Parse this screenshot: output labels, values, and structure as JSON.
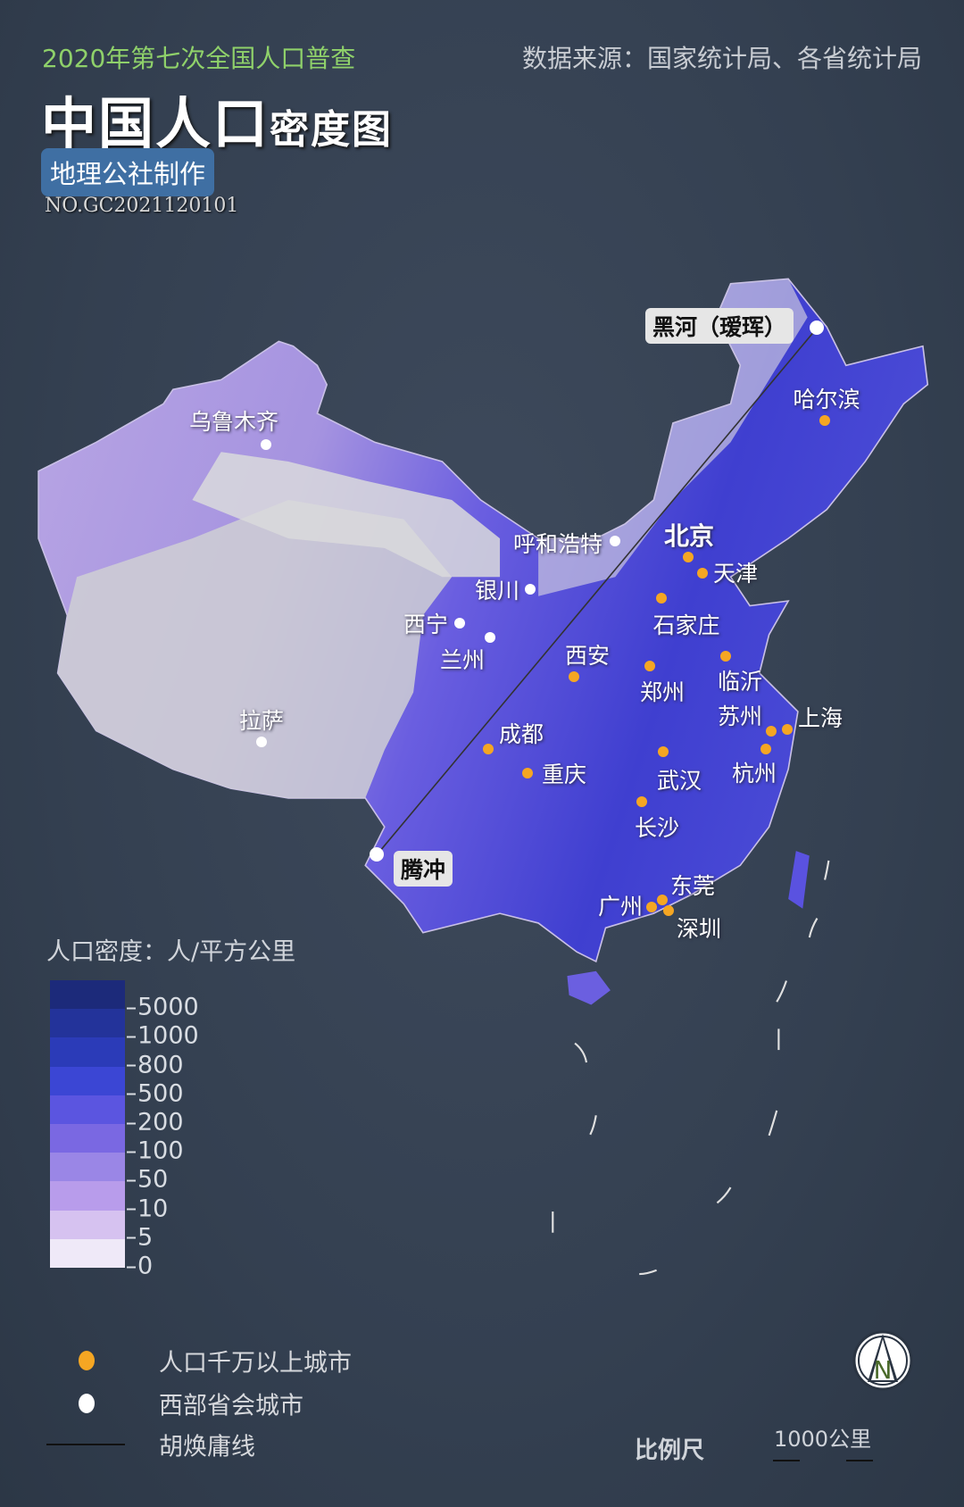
{
  "header": {
    "subtitle": "2020年第七次全国人口普查",
    "source": "数据来源：国家统计局、各省统计局",
    "title_large": "中国人口",
    "title_small": "密度图",
    "maker": "地理公社制作",
    "serial": "NO.GC2021120101"
  },
  "colors": {
    "megacity_dot": "#f5a623",
    "western_capital_dot": "#ffffff",
    "background": "#344051",
    "subtitle": "#8fd16a",
    "maker_badge": "#3f6fa3"
  },
  "cities": [
    {
      "name": "黑河（瑷珲）",
      "type": "western_capital",
      "style": "boxed"
    },
    {
      "name": "哈尔滨",
      "type": "megacity"
    },
    {
      "name": "乌鲁木齐",
      "type": "western_capital"
    },
    {
      "name": "呼和浩特",
      "type": "western_capital"
    },
    {
      "name": "北京",
      "type": "megacity",
      "style": "bold"
    },
    {
      "name": "天津",
      "type": "megacity"
    },
    {
      "name": "银川",
      "type": "western_capital"
    },
    {
      "name": "石家庄",
      "type": "megacity"
    },
    {
      "name": "西宁",
      "type": "western_capital"
    },
    {
      "name": "兰州",
      "type": "western_capital"
    },
    {
      "name": "西安",
      "type": "megacity"
    },
    {
      "name": "郑州",
      "type": "megacity"
    },
    {
      "name": "临沂",
      "type": "megacity"
    },
    {
      "name": "苏州",
      "type": "megacity"
    },
    {
      "name": "上海",
      "type": "megacity"
    },
    {
      "name": "杭州",
      "type": "megacity"
    },
    {
      "name": "成都",
      "type": "megacity"
    },
    {
      "name": "重庆",
      "type": "megacity"
    },
    {
      "name": "武汉",
      "type": "megacity"
    },
    {
      "name": "长沙",
      "type": "megacity"
    },
    {
      "name": "拉萨",
      "type": "western_capital"
    },
    {
      "name": "腾冲",
      "type": "western_capital",
      "style": "boxed"
    },
    {
      "name": "东莞",
      "type": "megacity"
    },
    {
      "name": "广州",
      "type": "megacity"
    },
    {
      "name": "深圳",
      "type": "megacity"
    }
  ],
  "density_legend": {
    "title": "人口密度：人/平方公里",
    "ticks": [
      "5000",
      "1000",
      "800",
      "500",
      "200",
      "100",
      "50",
      "10",
      "5",
      "0"
    ],
    "band_colors": [
      "#1c2a7a",
      "#23339a",
      "#2b3bb8",
      "#3b46d4",
      "#5b55e0",
      "#7a68e2",
      "#9a86e6",
      "#b89ceb",
      "#d6c2f0",
      "#efe9f8"
    ]
  },
  "symbol_legend": {
    "megacity": "人口千万以上城市",
    "western_capital": "西部省会城市",
    "hu_line": "胡焕庸线"
  },
  "scale": {
    "label": "比例尺",
    "distance": "1000公里"
  },
  "compass": {
    "letter": "N"
  }
}
